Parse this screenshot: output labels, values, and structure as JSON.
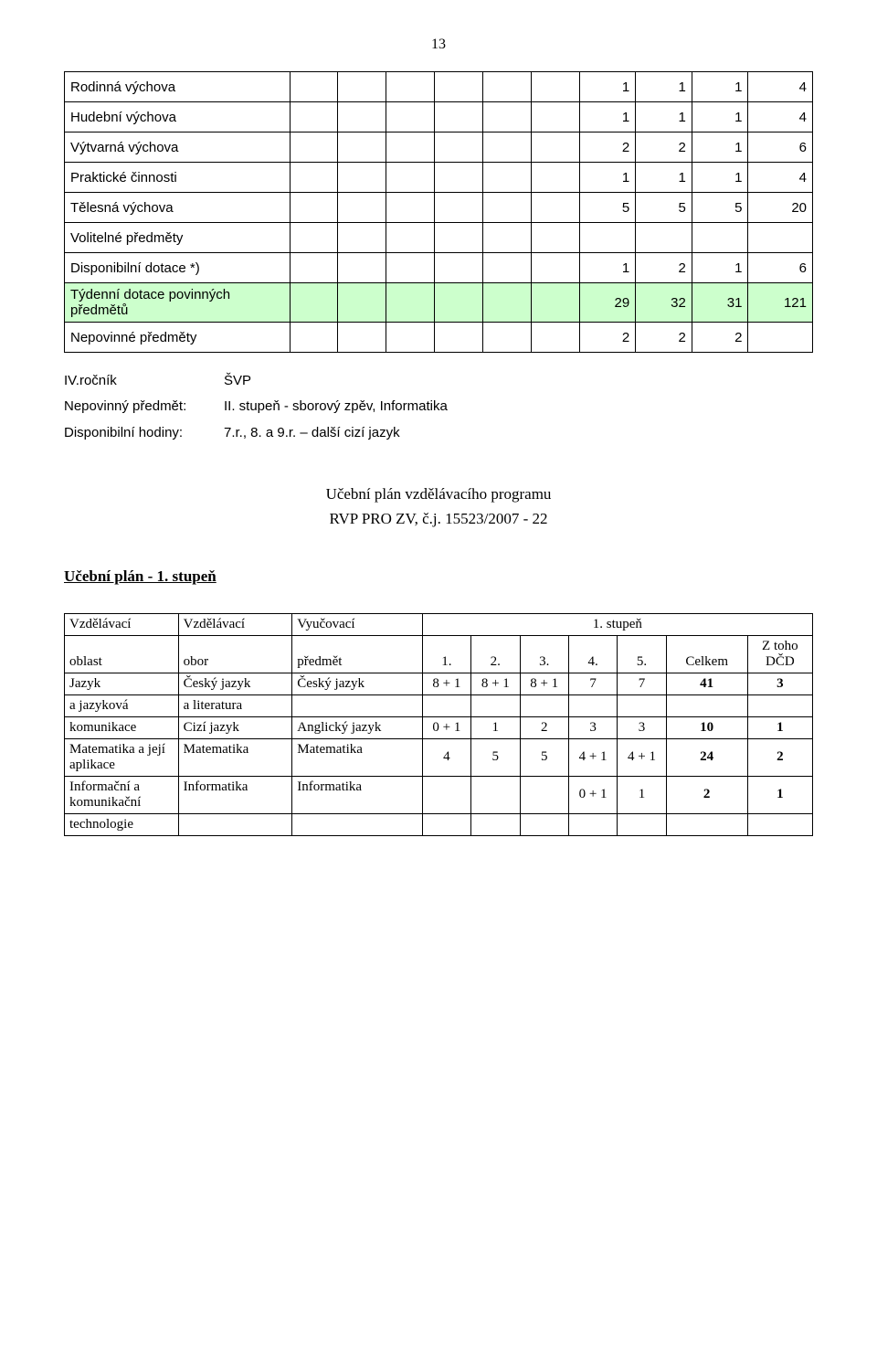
{
  "page_number": "13",
  "curriculum_table": {
    "col_widths_pct": [
      28,
      6,
      6,
      6,
      6,
      6,
      6,
      7,
      7,
      7,
      8
    ],
    "rows": [
      {
        "label": "Rodinná výchova",
        "vals": [
          "1",
          "1",
          "1",
          "4"
        ]
      },
      {
        "label": "Hudební výchova",
        "vals": [
          "1",
          "1",
          "1",
          "4"
        ]
      },
      {
        "label": "Výtvarná výchova",
        "vals": [
          "2",
          "2",
          "1",
          "6"
        ]
      },
      {
        "label": "Praktické činnosti",
        "vals": [
          "1",
          "1",
          "1",
          "4"
        ]
      },
      {
        "label": "Tělesná výchova",
        "vals": [
          "5",
          "5",
          "5",
          "20"
        ]
      },
      {
        "label": "Volitelné předměty",
        "vals": [
          "",
          "",
          "",
          ""
        ]
      },
      {
        "label": "Disponibilní dotace *)",
        "vals": [
          "1",
          "2",
          "1",
          "6"
        ]
      }
    ],
    "green_row": {
      "label": "Týdenní dotace povinných předmětů",
      "vals": [
        "29",
        "32",
        "31",
        "121"
      ]
    },
    "nepovinne_row": {
      "label": "Nepovinné předměty",
      "vals": [
        "2",
        "2",
        "2",
        ""
      ]
    }
  },
  "definitions": [
    {
      "key": "IV.ročník",
      "val": "ŠVP"
    },
    {
      "key": "Nepovinný předmět:",
      "val": "II. stupeň - sborový zpěv, Informatika"
    },
    {
      "key": "",
      "val": ""
    },
    {
      "key": "Disponibilní hodiny:",
      "val": "7.r., 8. a 9.r. – další cizí jazyk"
    }
  ],
  "plan_title_line1": "Učební plán vzdělávacího programu",
  "plan_title_line2": "RVP PRO ZV, č.j. 15523/2007 - 22",
  "plan_heading": "Učební plán  -  1. stupeň",
  "plan_table": {
    "col_widths_pct": [
      14,
      14,
      16,
      6,
      6,
      6,
      6,
      6,
      10,
      8
    ],
    "header1": {
      "c1": "Vzdělávací",
      "c2": "Vzdělávací",
      "c3": "Vyučovací",
      "span": "1. stupeň"
    },
    "header2": {
      "c1": "oblast",
      "c2": "obor",
      "c3": "předmět",
      "g": [
        "1.",
        "2.",
        "3.",
        "4.",
        "5."
      ],
      "celk": "Celkem",
      "dcd": "Z toho DČD"
    },
    "rows": [
      {
        "c1": "Jazyk",
        "c2": "Český jazyk",
        "c3": "Český jazyk",
        "g": [
          "8 + 1",
          "8 + 1",
          "8 + 1",
          "7",
          "7"
        ],
        "celk": "41",
        "dcd": "3"
      },
      {
        "c1": "a jazyková",
        "c2": "a literatura",
        "c3": "",
        "g": [
          "",
          "",
          "",
          "",
          ""
        ],
        "celk": "",
        "dcd": "",
        "thin": true
      },
      {
        "c1": "komunikace",
        "c2": "Cizí jazyk",
        "c3": "Anglický jazyk",
        "g": [
          "0 + 1",
          "1",
          "2",
          "3",
          "3"
        ],
        "celk": "10",
        "dcd": "1"
      },
      {
        "c1": "Matematika a její aplikace",
        "c2": "Matematika",
        "c3": "Matematika",
        "g": [
          "4",
          "5",
          "5",
          "4 + 1",
          "4 + 1"
        ],
        "celk": "24",
        "dcd": "2"
      },
      {
        "c1": "Informační a komunikační",
        "c2": "Informatika",
        "c3": "Informatika",
        "g": [
          "",
          "",
          "",
          "0 + 1",
          "1"
        ],
        "celk": "2",
        "dcd": "1"
      },
      {
        "c1": "technologie",
        "c2": "",
        "c3": "",
        "g": [
          "",
          "",
          "",
          "",
          ""
        ],
        "celk": "",
        "dcd": "",
        "thin": true
      }
    ]
  },
  "colors": {
    "green_bg": "#ccffcc",
    "border": "#000000",
    "page_bg": "#ffffff",
    "text": "#000000"
  }
}
